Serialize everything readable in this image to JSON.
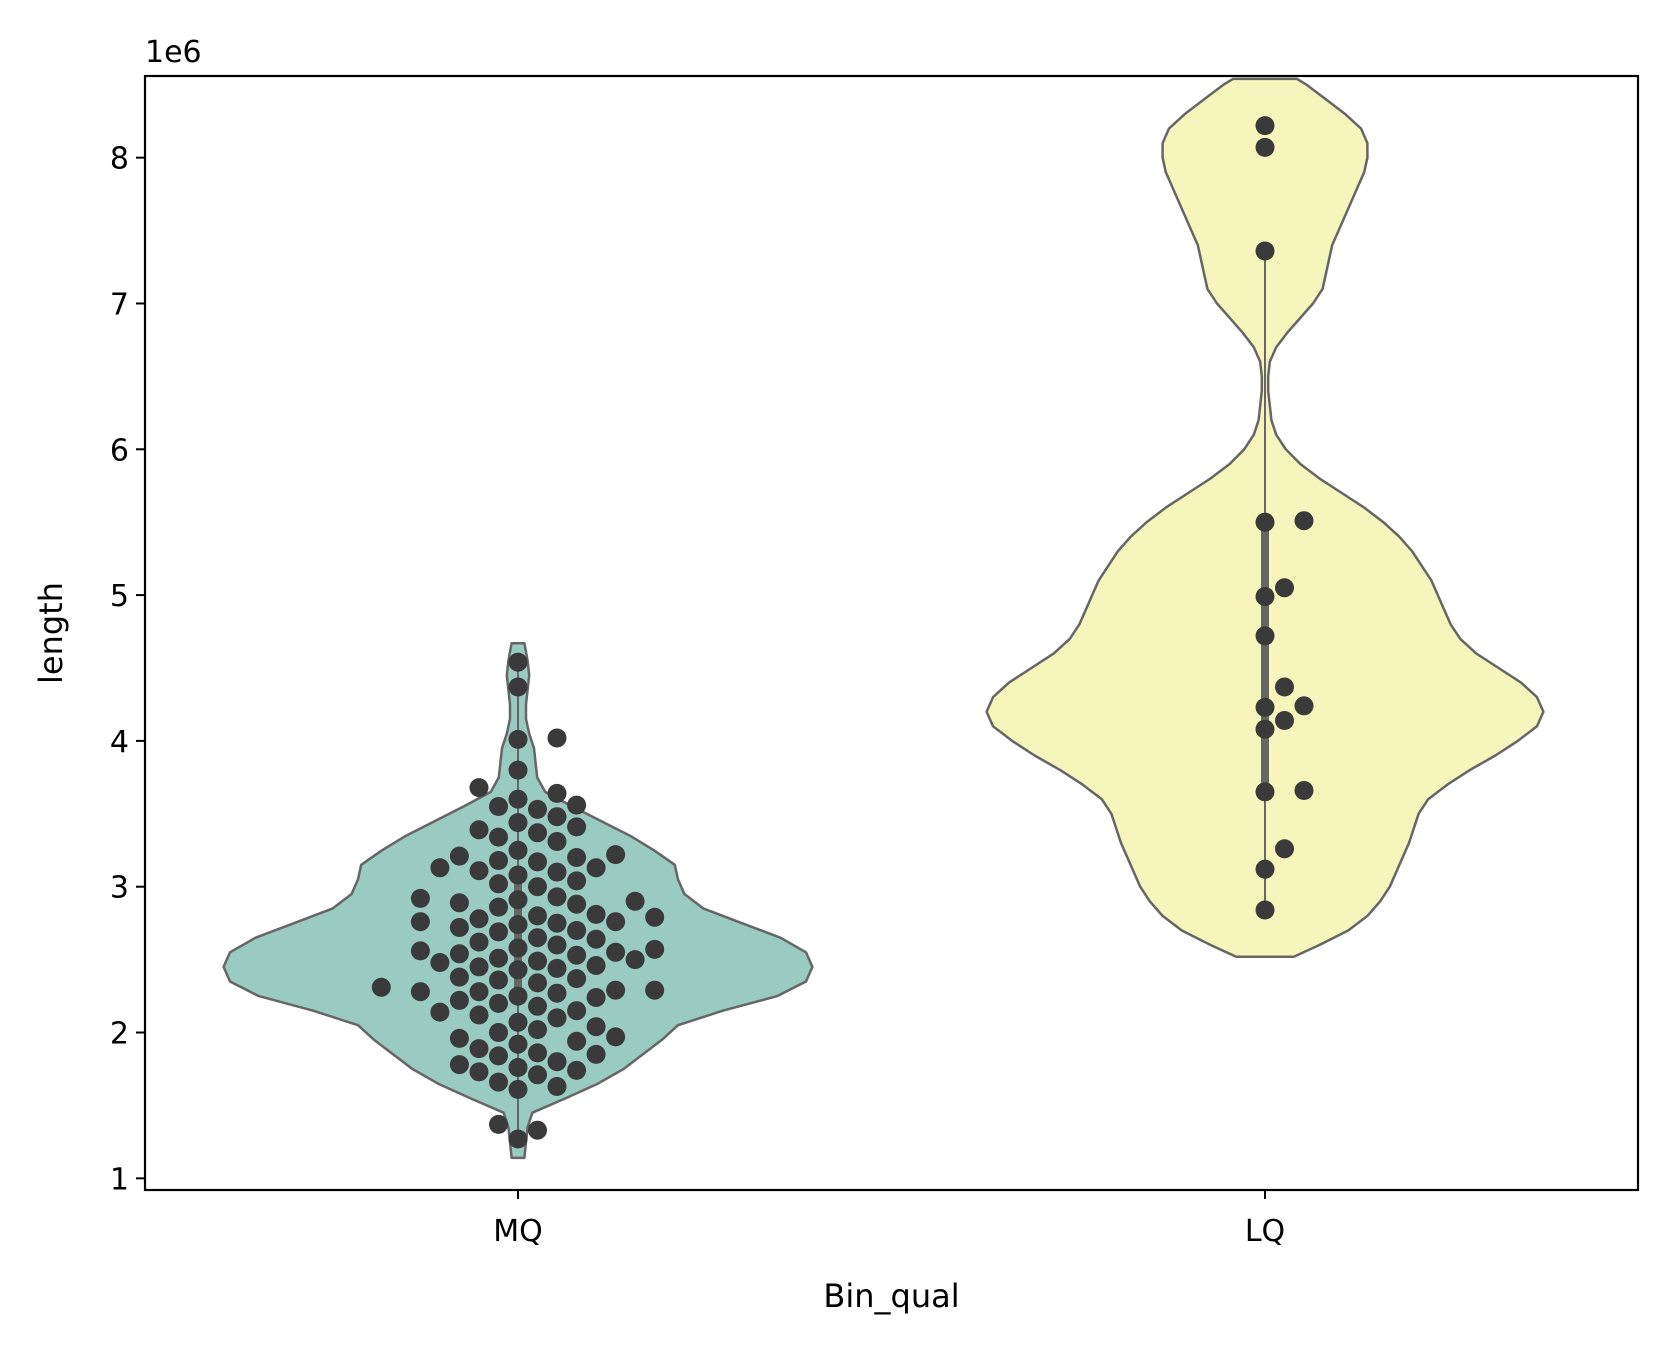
{
  "chart_data": {
    "type": "violin",
    "title": "",
    "xlabel": "Bin_qual",
    "ylabel": "length",
    "y_offset_label": "1e6",
    "ylim": [
      0.92,
      8.56
    ],
    "yticks": [
      1,
      2,
      3,
      4,
      5,
      6,
      7,
      8
    ],
    "grid": false,
    "legend": "none",
    "colors": {
      "violin_edge": "#666666",
      "point": "#3a3a3a",
      "axis": "#000000"
    },
    "categories": [
      {
        "name": "MQ",
        "color": "#99cbc1",
        "violin_range": [
          1.14,
          4.67
        ],
        "violin_profile": [
          [
            1.14,
            0.04
          ],
          [
            1.25,
            0.05
          ],
          [
            1.35,
            0.06
          ],
          [
            1.45,
            0.09
          ],
          [
            1.55,
            0.3
          ],
          [
            1.65,
            0.5
          ],
          [
            1.75,
            0.66
          ],
          [
            1.85,
            0.78
          ],
          [
            1.95,
            0.9
          ],
          [
            2.05,
            1.0
          ],
          [
            2.15,
            1.28
          ],
          [
            2.25,
            1.62
          ],
          [
            2.35,
            1.8
          ],
          [
            2.45,
            1.84
          ],
          [
            2.55,
            1.8
          ],
          [
            2.65,
            1.64
          ],
          [
            2.75,
            1.4
          ],
          [
            2.85,
            1.16
          ],
          [
            2.95,
            1.04
          ],
          [
            3.05,
            1.0
          ],
          [
            3.15,
            0.98
          ],
          [
            3.25,
            0.85
          ],
          [
            3.35,
            0.7
          ],
          [
            3.45,
            0.52
          ],
          [
            3.55,
            0.34
          ],
          [
            3.65,
            0.17
          ],
          [
            3.75,
            0.12
          ],
          [
            3.85,
            0.11
          ],
          [
            3.95,
            0.1
          ],
          [
            4.05,
            0.07
          ],
          [
            4.15,
            0.05
          ],
          [
            4.25,
            0.05
          ],
          [
            4.35,
            0.06
          ],
          [
            4.45,
            0.07
          ],
          [
            4.55,
            0.06
          ],
          [
            4.67,
            0.04
          ]
        ],
        "quartiles": [
          2.2,
          2.6,
          3.1
        ],
        "whiskers": [
          1.3,
          4.5
        ],
        "points": [
          1.27,
          1.33,
          1.37,
          1.61,
          1.63,
          1.66,
          1.71,
          1.73,
          1.74,
          1.76,
          1.78,
          1.8,
          1.84,
          1.85,
          1.86,
          1.89,
          1.92,
          1.94,
          1.96,
          1.97,
          2.0,
          2.02,
          2.04,
          2.07,
          2.1,
          2.12,
          2.14,
          2.15,
          2.18,
          2.2,
          2.22,
          2.24,
          2.25,
          2.27,
          2.28,
          2.28,
          2.29,
          2.29,
          2.31,
          2.34,
          2.36,
          2.37,
          2.38,
          2.43,
          2.44,
          2.45,
          2.46,
          2.48,
          2.49,
          2.5,
          2.51,
          2.53,
          2.54,
          2.55,
          2.56,
          2.57,
          2.58,
          2.6,
          2.62,
          2.64,
          2.65,
          2.69,
          2.7,
          2.72,
          2.74,
          2.75,
          2.76,
          2.76,
          2.78,
          2.79,
          2.8,
          2.81,
          2.86,
          2.88,
          2.89,
          2.9,
          2.91,
          2.92,
          2.93,
          3.0,
          3.02,
          3.04,
          3.08,
          3.1,
          3.11,
          3.13,
          3.13,
          3.17,
          3.18,
          3.2,
          3.21,
          3.22,
          3.25,
          3.31,
          3.34,
          3.37,
          3.39,
          3.41,
          3.44,
          3.48,
          3.53,
          3.55,
          3.56,
          3.6,
          3.64,
          3.68,
          3.8,
          4.01,
          4.02,
          4.37,
          4.54
        ]
      },
      {
        "name": "LQ",
        "color": "#f6f6bc",
        "violin_range": [
          2.52,
          8.54
        ],
        "violin_profile": [
          [
            2.52,
            0.18
          ],
          [
            2.6,
            0.34
          ],
          [
            2.7,
            0.52
          ],
          [
            2.8,
            0.64
          ],
          [
            2.9,
            0.72
          ],
          [
            3.0,
            0.78
          ],
          [
            3.1,
            0.82
          ],
          [
            3.2,
            0.86
          ],
          [
            3.3,
            0.9
          ],
          [
            3.4,
            0.93
          ],
          [
            3.5,
            0.96
          ],
          [
            3.6,
            1.02
          ],
          [
            3.7,
            1.14
          ],
          [
            3.8,
            1.28
          ],
          [
            3.9,
            1.44
          ],
          [
            4.0,
            1.58
          ],
          [
            4.1,
            1.7
          ],
          [
            4.2,
            1.74
          ],
          [
            4.3,
            1.7
          ],
          [
            4.4,
            1.6
          ],
          [
            4.5,
            1.46
          ],
          [
            4.6,
            1.32
          ],
          [
            4.7,
            1.22
          ],
          [
            4.8,
            1.16
          ],
          [
            4.9,
            1.12
          ],
          [
            5.0,
            1.08
          ],
          [
            5.1,
            1.04
          ],
          [
            5.2,
            0.98
          ],
          [
            5.3,
            0.92
          ],
          [
            5.4,
            0.84
          ],
          [
            5.5,
            0.74
          ],
          [
            5.6,
            0.62
          ],
          [
            5.7,
            0.48
          ],
          [
            5.8,
            0.34
          ],
          [
            5.9,
            0.22
          ],
          [
            6.0,
            0.13
          ],
          [
            6.1,
            0.07
          ],
          [
            6.2,
            0.04
          ],
          [
            6.3,
            0.03
          ],
          [
            6.4,
            0.02
          ],
          [
            6.5,
            0.02
          ],
          [
            6.6,
            0.03
          ],
          [
            6.7,
            0.07
          ],
          [
            6.8,
            0.14
          ],
          [
            6.9,
            0.22
          ],
          [
            7.0,
            0.3
          ],
          [
            7.1,
            0.36
          ],
          [
            7.2,
            0.38
          ],
          [
            7.3,
            0.4
          ],
          [
            7.4,
            0.42
          ],
          [
            7.5,
            0.46
          ],
          [
            7.6,
            0.5
          ],
          [
            7.7,
            0.54
          ],
          [
            7.8,
            0.58
          ],
          [
            7.9,
            0.62
          ],
          [
            8.0,
            0.64
          ],
          [
            8.1,
            0.64
          ],
          [
            8.2,
            0.6
          ],
          [
            8.3,
            0.5
          ],
          [
            8.4,
            0.38
          ],
          [
            8.5,
            0.26
          ],
          [
            8.54,
            0.2
          ]
        ],
        "quartiles": [
          3.65,
          4.25,
          5.45
        ],
        "whiskers": [
          2.84,
          7.36
        ],
        "points": [
          2.84,
          3.12,
          3.26,
          3.65,
          3.66,
          4.08,
          4.14,
          4.23,
          4.24,
          4.37,
          4.72,
          4.99,
          5.05,
          5.5,
          5.51,
          7.36,
          8.07,
          8.22
        ]
      }
    ]
  }
}
